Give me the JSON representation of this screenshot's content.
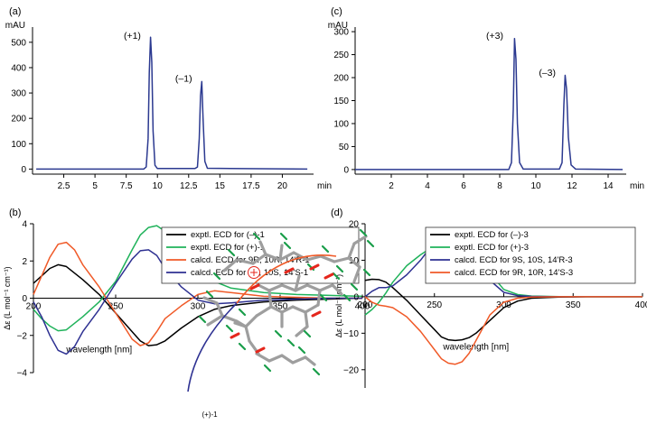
{
  "chart_data": [
    {
      "panel": "(a)",
      "type": "line",
      "ylabel": "mAU",
      "xlabel": "min",
      "xlim": [
        0,
        22.5
      ],
      "ylim": [
        -20,
        560
      ],
      "xticks": [
        2.5,
        5,
        7.5,
        10,
        12.5,
        15,
        17.5,
        20
      ],
      "yticks": [
        0,
        100,
        200,
        300,
        400,
        500
      ],
      "annotations": [
        {
          "text": "(+1)",
          "x": 9.4,
          "y": 525
        },
        {
          "text": "(–1)",
          "x": 13.5,
          "y": 355
        }
      ],
      "series": [
        {
          "color": "#2b3990",
          "x": [
            0.3,
            8.9,
            9.1,
            9.25,
            9.35,
            9.45,
            9.55,
            9.65,
            9.8,
            10.0,
            13.0,
            13.2,
            13.35,
            13.45,
            13.55,
            13.65,
            13.8,
            14.0,
            22.0
          ],
          "y": [
            0,
            0,
            8,
            120,
            380,
            520,
            420,
            150,
            15,
            2,
            2,
            8,
            120,
            290,
            345,
            200,
            30,
            3,
            0
          ]
        }
      ]
    },
    {
      "panel": "(c)",
      "type": "line",
      "ylabel": "mAU",
      "xlabel": "min",
      "xlim": [
        0,
        15
      ],
      "ylim": [
        -10,
        310
      ],
      "xticks": [
        2,
        4,
        6,
        8,
        10,
        12,
        14
      ],
      "yticks": [
        0,
        50,
        100,
        150,
        200,
        250,
        300
      ],
      "annotations": [
        {
          "text": "(+3)",
          "x": 8.7,
          "y": 290
        },
        {
          "text": "(–3)",
          "x": 11.6,
          "y": 210
        }
      ],
      "series": [
        {
          "color": "#2b3990",
          "x": [
            0.0,
            8.5,
            8.65,
            8.75,
            8.82,
            8.9,
            8.98,
            9.1,
            9.3,
            11.3,
            11.45,
            11.55,
            11.62,
            11.7,
            11.8,
            11.95,
            12.2,
            14.8
          ],
          "y": [
            0,
            0,
            15,
            130,
            285,
            240,
            100,
            15,
            1,
            1,
            15,
            140,
            205,
            175,
            70,
            10,
            1,
            0
          ]
        }
      ]
    },
    {
      "panel": "(b)",
      "type": "line",
      "xlabel": "wavelength [nm]",
      "ylabel": "Δε (L mol⁻¹ cm⁻¹)",
      "xlim": [
        200,
        400
      ],
      "ylim": [
        -4,
        4
      ],
      "xticks": [
        200,
        250,
        300,
        350,
        400
      ],
      "yticks": [
        -4,
        -2,
        0,
        2,
        4
      ],
      "legend": "top-right",
      "inset_label": "(+)-1",
      "series": [
        {
          "name": "exptl. ECD for (–)-1",
          "color": "#000000",
          "x": [
            200,
            205,
            210,
            215,
            220,
            230,
            240,
            250,
            260,
            265,
            270,
            275,
            280,
            290,
            300,
            310,
            320,
            340,
            360,
            380,
            400
          ],
          "y": [
            0.8,
            1.2,
            1.6,
            1.8,
            1.7,
            1.0,
            0.2,
            -0.8,
            -1.8,
            -2.3,
            -2.55,
            -2.5,
            -2.3,
            -1.6,
            -1.0,
            -0.6,
            -0.4,
            -0.2,
            -0.1,
            -0.05,
            0
          ]
        },
        {
          "name": "exptl. ECD for (+)-1",
          "color": "#1fb25a",
          "x": [
            200,
            205,
            210,
            215,
            220,
            230,
            240,
            250,
            260,
            265,
            270,
            275,
            280,
            290,
            300,
            310,
            320,
            340,
            360,
            380,
            400
          ],
          "y": [
            -0.6,
            -1.1,
            -1.5,
            -1.75,
            -1.7,
            -1.0,
            -0.2,
            0.9,
            2.6,
            3.4,
            3.8,
            3.9,
            3.6,
            2.6,
            1.5,
            0.9,
            0.55,
            0.3,
            0.2,
            0.15,
            0.1
          ]
        },
        {
          "name": "calcd. ECD for 9R, 10R, 14'R-1",
          "color": "#f05a28",
          "x": [
            200,
            205,
            210,
            215,
            220,
            225,
            230,
            240,
            250,
            260,
            265,
            270,
            275,
            280,
            290,
            300,
            310,
            320,
            340,
            360,
            380,
            400
          ],
          "y": [
            0.2,
            1.2,
            2.2,
            2.9,
            3.0,
            2.6,
            1.8,
            0.6,
            -0.8,
            -2.2,
            -2.55,
            -2.4,
            -1.8,
            -1.1,
            -0.4,
            0.2,
            0.4,
            0.3,
            0.1,
            0.05,
            0,
            0
          ]
        },
        {
          "name": "calcd. ECD for 9S, 10S, 14'S-1",
          "color": "#2e3192",
          "x": [
            200,
            205,
            210,
            215,
            220,
            225,
            230,
            240,
            250,
            260,
            265,
            270,
            275,
            280,
            290,
            300,
            310,
            320,
            340,
            360,
            380,
            400
          ],
          "y": [
            -0.2,
            -1.0,
            -2.0,
            -2.8,
            -3.0,
            -2.6,
            -1.8,
            -0.6,
            0.8,
            2.1,
            2.55,
            2.6,
            2.3,
            1.6,
            0.6,
            -0.1,
            -0.3,
            -0.25,
            -0.1,
            -0.05,
            0,
            0
          ]
        }
      ]
    },
    {
      "panel": "(d)",
      "type": "line",
      "xlabel": "wavelength [nm]",
      "ylabel": "Δε (L mol⁻¹ cm⁻¹)",
      "xlim": [
        200,
        400
      ],
      "ylim": [
        -25,
        20
      ],
      "xticks": [
        200,
        250,
        300,
        350,
        400
      ],
      "yticks": [
        -20,
        -10,
        0,
        10,
        20
      ],
      "legend": "top-right",
      "series": [
        {
          "name": "exptl. ECD for (–)-3",
          "color": "#000000",
          "x": [
            200,
            205,
            210,
            215,
            220,
            230,
            240,
            250,
            255,
            260,
            265,
            270,
            275,
            280,
            290,
            300,
            310,
            320,
            340,
            360,
            380,
            400
          ],
          "y": [
            4.5,
            4.8,
            4.7,
            4.0,
            2.5,
            -1.0,
            -5.0,
            -9.0,
            -11.0,
            -11.8,
            -12.0,
            -11.8,
            -11.2,
            -10.0,
            -6.5,
            -3.0,
            -1.2,
            -0.4,
            -0.1,
            0,
            0,
            0
          ]
        },
        {
          "name": "exptl. ECD for (+)-3",
          "color": "#1fb25a",
          "x": [
            200,
            205,
            210,
            215,
            220,
            230,
            240,
            250,
            255,
            260,
            265,
            270,
            275,
            280,
            290,
            300,
            310,
            320,
            340,
            360,
            380,
            400
          ],
          "y": [
            -5.0,
            -3.5,
            -1.5,
            1.0,
            4.0,
            8.5,
            11.5,
            14.0,
            15.5,
            16.3,
            16.6,
            16.2,
            15.0,
            12.5,
            6.5,
            2.0,
            0.6,
            0.2,
            0.05,
            0,
            0,
            0
          ]
        },
        {
          "name": "calcd. ECD for 9S, 10S, 14'R-3",
          "color": "#2e3192",
          "x": [
            200,
            205,
            210,
            215,
            220,
            230,
            240,
            250,
            255,
            260,
            265,
            270,
            275,
            280,
            290,
            300,
            310,
            320,
            340,
            360,
            380,
            400
          ],
          "y": [
            0,
            1.5,
            2.5,
            2.5,
            3.0,
            6.0,
            10.0,
            15.0,
            17.5,
            18.6,
            18.5,
            17.2,
            14.5,
            11.0,
            4.5,
            1.2,
            0.3,
            0.1,
            0,
            0,
            0,
            0
          ]
        },
        {
          "name": "calcd. ECD for 9R, 10R, 14'S-3",
          "color": "#f05a28",
          "x": [
            200,
            205,
            210,
            215,
            220,
            230,
            240,
            250,
            255,
            260,
            265,
            270,
            275,
            280,
            290,
            300,
            310,
            320,
            340,
            360,
            380,
            400
          ],
          "y": [
            0,
            -1.5,
            -2.3,
            -2.6,
            -3.0,
            -5.5,
            -9.5,
            -14.5,
            -17.0,
            -18.2,
            -18.5,
            -17.8,
            -15.5,
            -12.0,
            -5.0,
            -1.5,
            -0.4,
            -0.1,
            0,
            0,
            0,
            0
          ]
        }
      ]
    }
  ]
}
